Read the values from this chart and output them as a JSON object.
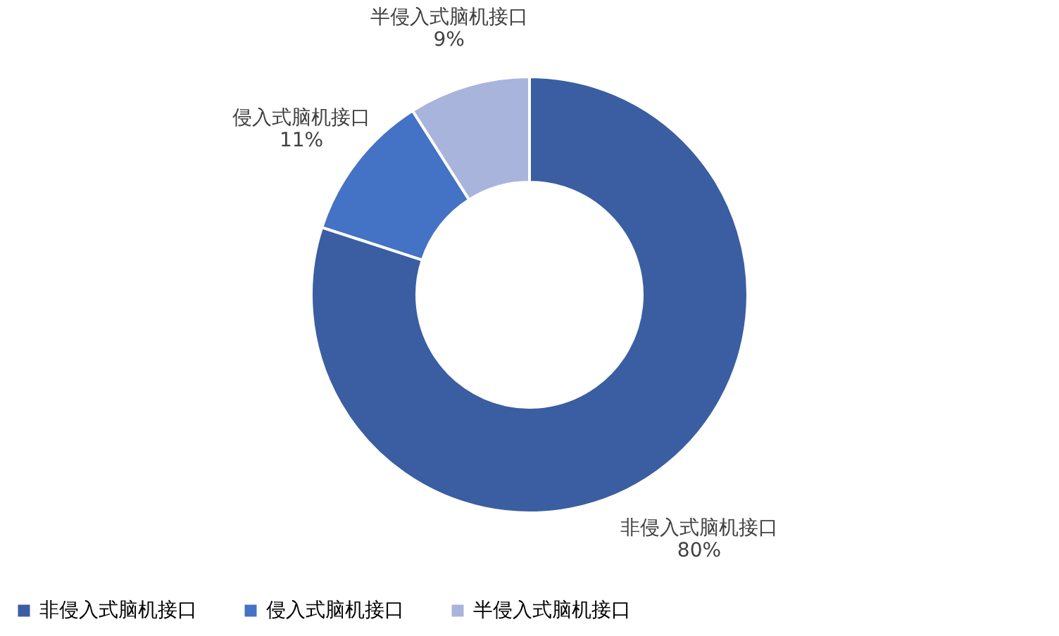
{
  "chart_data": {
    "type": "donut",
    "categories": [
      "非侵入式脑机接口",
      "侵入式脑机接口",
      "半侵入式脑机接口"
    ],
    "values": [
      80,
      11,
      9
    ],
    "colors": [
      "#3a5ea1",
      "#4472c4",
      "#a9b4dc"
    ],
    "value_labels": [
      "80%",
      "11%",
      "9%"
    ],
    "legend": "bottom"
  }
}
